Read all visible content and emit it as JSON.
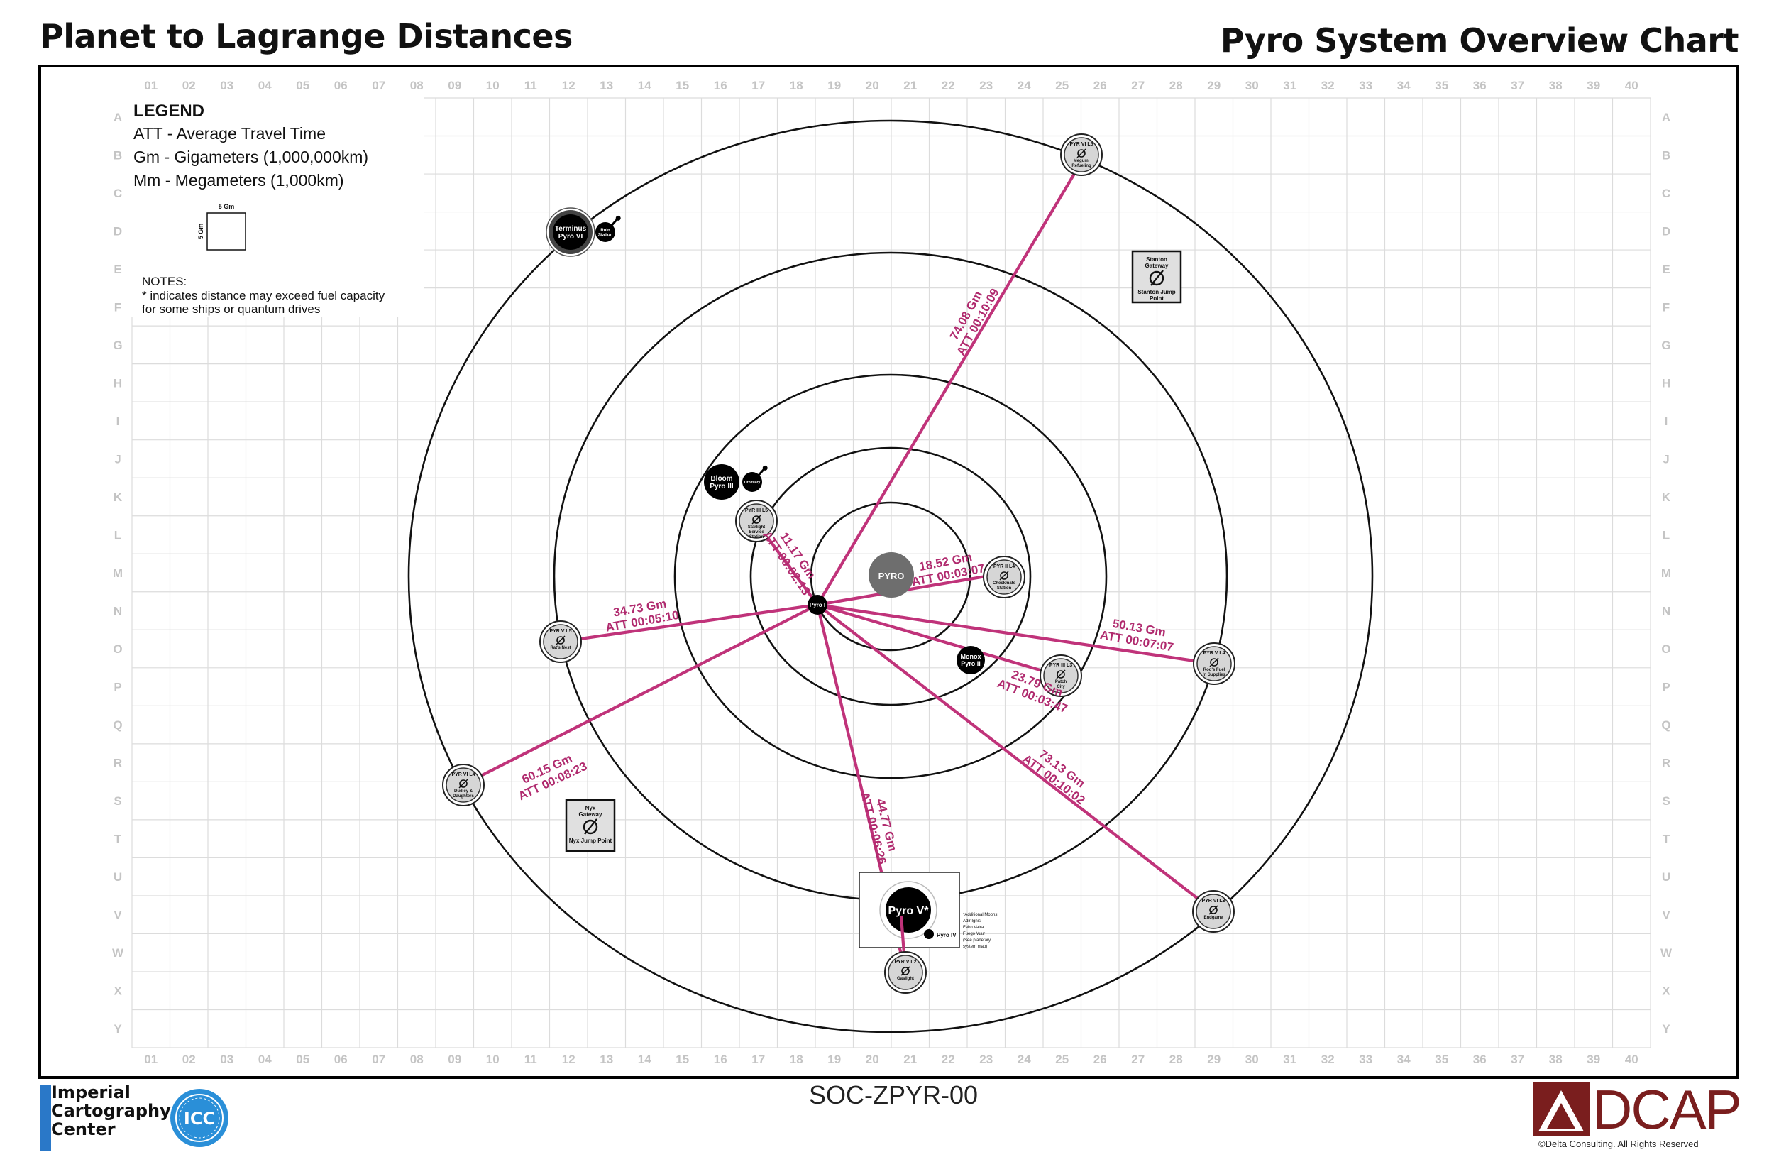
{
  "header": {
    "left_title": "Planet to Lagrange Distances",
    "right_title": "Pyro System Overview Chart"
  },
  "grid": {
    "columns": [
      "01",
      "02",
      "03",
      "04",
      "05",
      "06",
      "07",
      "08",
      "09",
      "10",
      "11",
      "12",
      "13",
      "14",
      "15",
      "16",
      "17",
      "18",
      "19",
      "20",
      "21",
      "22",
      "23",
      "24",
      "25",
      "26",
      "27",
      "28",
      "29",
      "30",
      "31",
      "32",
      "33",
      "34",
      "35",
      "36",
      "37",
      "38",
      "39",
      "40"
    ],
    "rows": [
      "A",
      "B",
      "C",
      "D",
      "E",
      "F",
      "G",
      "H",
      "I",
      "J",
      "K",
      "L",
      "M",
      "N",
      "O",
      "P",
      "Q",
      "R",
      "S",
      "T",
      "U",
      "V",
      "W",
      "X",
      "Y"
    ]
  },
  "legend": {
    "title": "LEGEND",
    "lines": [
      "ATT - Average Travel Time",
      "Gm - Gigameters (1,000,000km)",
      "Mm - Megameters (1,000km)"
    ],
    "scale_label_top": "5 Gm",
    "scale_label_side": "5 Gm"
  },
  "notes": {
    "title": "NOTES:",
    "lines": [
      "* indicates distance may exceed fuel capacity",
      "for some ships or quantum drives"
    ]
  },
  "star": {
    "name": "PYRO"
  },
  "bodies": [
    {
      "lines": [
        "Pyro I"
      ],
      "kind": "planet"
    },
    {
      "lines": [
        "Monox",
        "Pyro II"
      ],
      "kind": "planet"
    },
    {
      "lines": [
        "Bloom",
        "Pyro III"
      ],
      "kind": "planet"
    },
    {
      "lines": [
        "Orbituary"
      ],
      "kind": "station"
    },
    {
      "lines": [
        "Terminus",
        "Pyro VI"
      ],
      "kind": "planet"
    },
    {
      "lines": [
        "Ruin",
        "Station"
      ],
      "kind": "station"
    },
    {
      "lines": [
        "Pyro V*"
      ],
      "kind": "planet"
    },
    {
      "lines": [
        "Pyro IV"
      ],
      "kind": "moon"
    }
  ],
  "lagrange_points": [
    {
      "lines": [
        "PYR VI L5",
        "Megumi",
        "Refueling"
      ]
    },
    {
      "lines": [
        "PYR III L5",
        "Starlight",
        "Service",
        "Station"
      ]
    },
    {
      "lines": [
        "PYR II L4",
        "Checkmate",
        "Station"
      ]
    },
    {
      "lines": [
        "PYR V L5",
        "Rat's Nest"
      ]
    },
    {
      "lines": [
        "PYR III L3",
        "Patch",
        "City"
      ]
    },
    {
      "lines": [
        "PYR V L4",
        "Rod's Fuel",
        "'n Supplies"
      ]
    },
    {
      "lines": [
        "PYR VI L4",
        "Dudley &",
        "Daughters"
      ]
    },
    {
      "lines": [
        "PYR V L2",
        "Gaslight"
      ]
    },
    {
      "lines": [
        "PYR VI L3",
        "Endgame"
      ]
    }
  ],
  "jump_points": [
    {
      "name": "Stanton Gateway",
      "lines": [
        "Stanton",
        "Gateway"
      ],
      "caption_lines": [
        "Stanton Jump",
        "Point"
      ]
    },
    {
      "name": "Nyx Gateway",
      "lines": [
        "Nyx",
        "Gateway"
      ],
      "caption_lines": [
        "Nyx Jump Point"
      ]
    }
  ],
  "routes": [
    {
      "distance": "74.08 Gm",
      "att": "ATT 00:10:09"
    },
    {
      "distance": "11.17 Gm",
      "att": "ATT 00:02:13"
    },
    {
      "distance": "18.52 Gm",
      "att": "ATT 00:03:07"
    },
    {
      "distance": "34.73 Gm",
      "att": "ATT 00:05:10"
    },
    {
      "distance": "50.13 Gm",
      "att": "ATT 00:07:07"
    },
    {
      "distance": "23.79 Gm",
      "att": "ATT 00:03:47"
    },
    {
      "distance": "60.15 Gm",
      "att": "ATT 00:08:23"
    },
    {
      "distance": "44.77 Gm",
      "att": "ATT 00:06:26"
    },
    {
      "distance": "73.13 Gm",
      "att": "ATT 00:10:02"
    }
  ],
  "pyro_v_note": [
    "*Additional Moons:",
    "Adir    Ignis",
    "Fairo   Vatra",
    "Fuego   Vuur",
    "(See planetary",
    "system map)"
  ],
  "footer": {
    "map_code": "SOC-ZPYR-00",
    "left_logo_lines": [
      "Imperial",
      "Cartography",
      "Center"
    ],
    "left_logo_seal": "ICC",
    "right_logo": "DCAP",
    "right_logo_copyright": "Delta Consulting.  All Rights Reserved"
  },
  "colors": {
    "route": "#c0337a",
    "route_label": "#b02a6e",
    "grid_line": "#dcdcdc",
    "grid_label": "#c4c4c4",
    "orbit": "#111111",
    "star": "#6e6e6e",
    "planet": "#000000",
    "lagrange_fill": "#d6d6d6"
  }
}
